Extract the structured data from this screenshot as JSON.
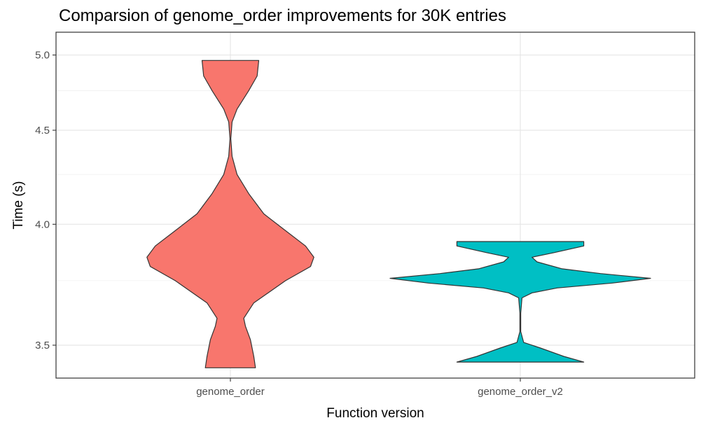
{
  "chart_data": {
    "type": "violin",
    "title": "Comparsion of genome_order improvements for 30K entries",
    "xlabel": "Function version",
    "ylabel": "Time (s)",
    "y_scale": "reciprocal",
    "ylim": [
      3.43,
      5.0
    ],
    "yticks": [
      "3.5",
      "4.0",
      "4.5",
      "5.0"
    ],
    "grid": true,
    "legend": "none",
    "categories": [
      "genome_order",
      "genome_order_v2"
    ],
    "colors": [
      "#F8766D",
      "#00BFC4"
    ],
    "series": [
      {
        "category": "genome_order",
        "color": "#F8766D",
        "range": [
          3.42,
          4.96
        ],
        "density": [
          [
            3.42,
            0.15
          ],
          [
            3.46,
            0.14
          ],
          [
            3.52,
            0.12
          ],
          [
            3.57,
            0.09
          ],
          [
            3.6,
            0.08
          ],
          [
            3.66,
            0.14
          ],
          [
            3.75,
            0.33
          ],
          [
            3.81,
            0.48
          ],
          [
            3.85,
            0.5
          ],
          [
            3.9,
            0.45
          ],
          [
            3.97,
            0.33
          ],
          [
            4.05,
            0.2
          ],
          [
            4.15,
            0.11
          ],
          [
            4.25,
            0.04
          ],
          [
            4.35,
            0.01
          ],
          [
            4.45,
            0.0
          ],
          [
            4.55,
            0.01
          ],
          [
            4.63,
            0.04
          ],
          [
            4.75,
            0.11
          ],
          [
            4.85,
            0.16
          ],
          [
            4.96,
            0.17
          ]
        ]
      },
      {
        "category": "genome_order_v2",
        "color": "#00BFC4",
        "range": [
          3.44,
          3.92
        ],
        "density": [
          [
            3.44,
            0.38
          ],
          [
            3.46,
            0.26
          ],
          [
            3.49,
            0.12
          ],
          [
            3.51,
            0.02
          ],
          [
            3.55,
            0.0
          ],
          [
            3.62,
            0.0
          ],
          [
            3.68,
            0.01
          ],
          [
            3.7,
            0.07
          ],
          [
            3.72,
            0.22
          ],
          [
            3.74,
            0.55
          ],
          [
            3.76,
            0.78
          ],
          [
            3.78,
            0.48
          ],
          [
            3.8,
            0.25
          ],
          [
            3.83,
            0.1
          ],
          [
            3.85,
            0.07
          ],
          [
            3.87,
            0.2
          ],
          [
            3.9,
            0.38
          ],
          [
            3.92,
            0.38
          ]
        ]
      }
    ]
  }
}
